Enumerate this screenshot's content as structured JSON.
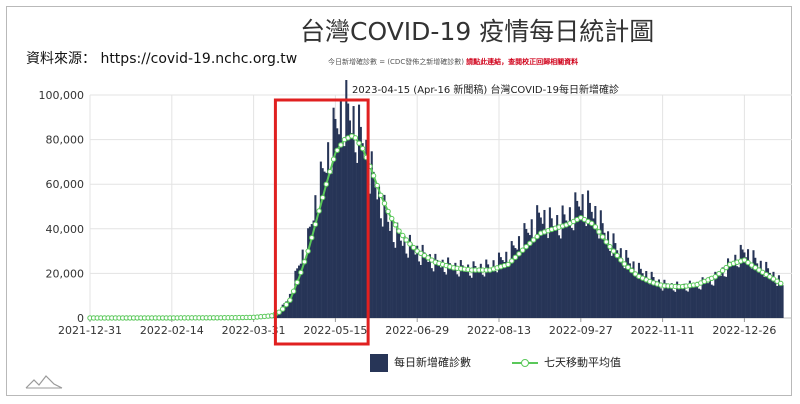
{
  "header": {
    "title": "台灣COVID-19 疫情每日統計圖",
    "source": "資料來源：  https://covid-19.nchc.org.tw",
    "note_prefix": "今日新增確診數 = (CDC發佈之新增確診數) ",
    "note_link": "請點此連結，查閱校正回歸相關資料"
  },
  "colors": {
    "bars": "#273557",
    "line": "#5ac85a",
    "highlight": "#e02020",
    "grid": "#e3e3e3"
  },
  "chart_data": {
    "type": "bar",
    "title": "2023-04-15 (Apr-16 新聞稿) 台灣COVID-19每日新增確診",
    "xlabel": "",
    "ylabel": "",
    "ylim": [
      0,
      100000
    ],
    "y_ticks": [
      "0",
      "20,000",
      "40,000",
      "60,000",
      "80,000",
      "100,000"
    ],
    "x_ticks": [
      "2021-12-31",
      "2022-02-14",
      "2022-03-31",
      "2022-05-15",
      "2022-06-29",
      "2022-08-13",
      "2022-09-27",
      "2022-11-11",
      "2022-12-26"
    ],
    "x_start": "2021-12-31",
    "highlight_range": [
      "2022-04-12",
      "2022-06-02"
    ],
    "series": [
      {
        "name": "每日新增確診數",
        "type": "bar",
        "points": [
          [
            "2021-12-31",
            20
          ],
          [
            "2022-02-14",
            50
          ],
          [
            "2022-03-20",
            150
          ],
          [
            "2022-03-31",
            400
          ],
          [
            "2022-04-10",
            1500
          ],
          [
            "2022-04-15",
            4000
          ],
          [
            "2022-04-20",
            10000
          ],
          [
            "2022-04-25",
            24000
          ],
          [
            "2022-04-30",
            35000
          ],
          [
            "2022-05-05",
            55000
          ],
          [
            "2022-05-10",
            70000
          ],
          [
            "2022-05-15",
            85000
          ],
          [
            "2022-05-20",
            94000
          ],
          [
            "2022-05-25",
            88000
          ],
          [
            "2022-05-30",
            80000
          ],
          [
            "2022-06-04",
            65000
          ],
          [
            "2022-06-09",
            52000
          ],
          [
            "2022-06-14",
            42000
          ],
          [
            "2022-06-19",
            36000
          ],
          [
            "2022-06-24",
            33000
          ],
          [
            "2022-06-29",
            30000
          ],
          [
            "2022-07-09",
            25000
          ],
          [
            "2022-07-19",
            23000
          ],
          [
            "2022-07-29",
            22000
          ],
          [
            "2022-08-08",
            23000
          ],
          [
            "2022-08-18",
            28000
          ],
          [
            "2022-08-28",
            38000
          ],
          [
            "2022-09-05",
            46000
          ],
          [
            "2022-09-12",
            42000
          ],
          [
            "2022-09-20",
            45000
          ],
          [
            "2022-09-27",
            52000
          ],
          [
            "2022-10-04",
            48000
          ],
          [
            "2022-10-12",
            36000
          ],
          [
            "2022-10-20",
            28000
          ],
          [
            "2022-10-28",
            22000
          ],
          [
            "2022-11-05",
            18000
          ],
          [
            "2022-11-11",
            15000
          ],
          [
            "2022-11-21",
            14000
          ],
          [
            "2022-11-30",
            15000
          ],
          [
            "2022-12-10",
            18000
          ],
          [
            "2022-12-18",
            24000
          ],
          [
            "2022-12-26",
            30000
          ],
          [
            "2023-01-02",
            25000
          ],
          [
            "2023-01-10",
            20000
          ],
          [
            "2023-01-16",
            15000
          ]
        ]
      },
      {
        "name": "七天移動平均值",
        "type": "line",
        "points": [
          [
            "2021-12-31",
            20
          ],
          [
            "2022-02-14",
            40
          ],
          [
            "2022-03-20",
            120
          ],
          [
            "2022-03-31",
            300
          ],
          [
            "2022-04-10",
            1000
          ],
          [
            "2022-04-15",
            3000
          ],
          [
            "2022-04-20",
            8000
          ],
          [
            "2022-04-25",
            18000
          ],
          [
            "2022-04-30",
            30000
          ],
          [
            "2022-05-05",
            45000
          ],
          [
            "2022-05-10",
            60000
          ],
          [
            "2022-05-15",
            74000
          ],
          [
            "2022-05-20",
            80000
          ],
          [
            "2022-05-25",
            82000
          ],
          [
            "2022-05-30",
            76000
          ],
          [
            "2022-06-04",
            66000
          ],
          [
            "2022-06-09",
            55000
          ],
          [
            "2022-06-14",
            46000
          ],
          [
            "2022-06-19",
            39000
          ],
          [
            "2022-06-24",
            34000
          ],
          [
            "2022-06-29",
            30000
          ],
          [
            "2022-07-09",
            25000
          ],
          [
            "2022-07-19",
            22500
          ],
          [
            "2022-07-29",
            21500
          ],
          [
            "2022-08-08",
            21500
          ],
          [
            "2022-08-18",
            24000
          ],
          [
            "2022-08-28",
            32000
          ],
          [
            "2022-09-05",
            38000
          ],
          [
            "2022-09-12",
            40000
          ],
          [
            "2022-09-20",
            42000
          ],
          [
            "2022-09-27",
            45000
          ],
          [
            "2022-10-04",
            42000
          ],
          [
            "2022-10-12",
            33000
          ],
          [
            "2022-10-20",
            25000
          ],
          [
            "2022-10-28",
            19000
          ],
          [
            "2022-11-05",
            16000
          ],
          [
            "2022-11-11",
            14500
          ],
          [
            "2022-11-21",
            14000
          ],
          [
            "2022-11-30",
            15000
          ],
          [
            "2022-12-10",
            18500
          ],
          [
            "2022-12-18",
            24000
          ],
          [
            "2022-12-26",
            26000
          ],
          [
            "2023-01-02",
            22000
          ],
          [
            "2023-01-10",
            18000
          ],
          [
            "2023-01-16",
            15000
          ]
        ]
      }
    ]
  }
}
